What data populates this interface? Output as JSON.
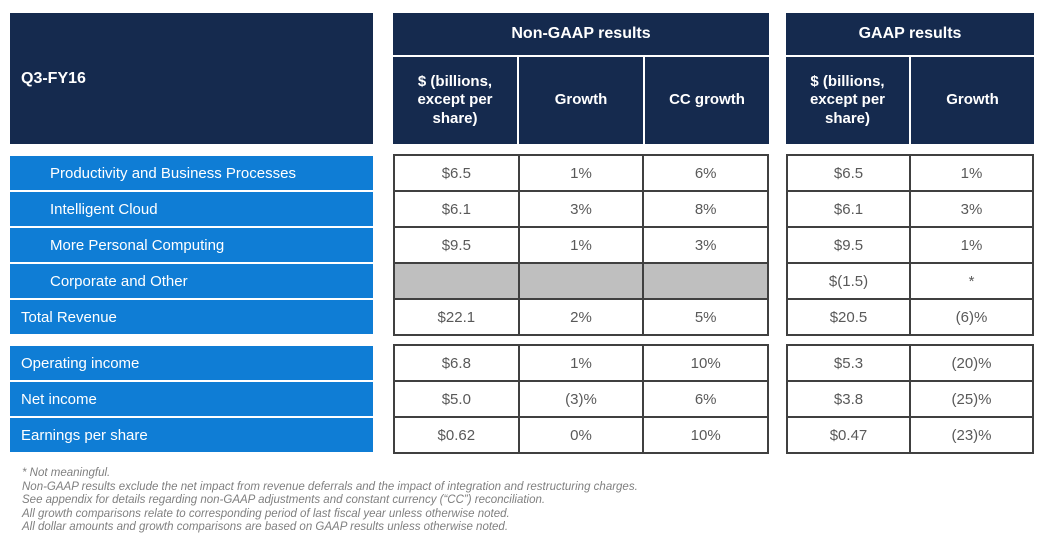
{
  "title_cell": "Q3-FY16",
  "non_gaap": {
    "title": "Non-GAAP results",
    "columns": [
      "$ (billions, except per share)",
      "Growth",
      "CC growth"
    ]
  },
  "gaap": {
    "title": "GAAP results",
    "columns": [
      "$ (billions, except per share)",
      "Growth"
    ]
  },
  "rows": {
    "revenue_labels": [
      "Productivity and Business Processes",
      "Intelligent Cloud",
      "More Personal Computing",
      "Corporate and Other",
      "Total Revenue"
    ],
    "income_labels": [
      "Operating income",
      "Net income",
      "Earnings per share"
    ]
  },
  "values": {
    "revenue_non_gaap": [
      [
        "$6.5",
        "1%",
        "6%"
      ],
      [
        "$6.1",
        "3%",
        "8%"
      ],
      [
        "$9.5",
        "1%",
        "3%"
      ],
      [
        "",
        "",
        ""
      ],
      [
        "$22.1",
        "2%",
        "5%"
      ]
    ],
    "revenue_gaap": [
      [
        "$6.5",
        "1%"
      ],
      [
        "$6.1",
        "3%"
      ],
      [
        "$9.5",
        "1%"
      ],
      [
        "$(1.5)",
        "*"
      ],
      [
        "$20.5",
        "(6)%"
      ]
    ],
    "income_non_gaap": [
      [
        "$6.8",
        "1%",
        "10%"
      ],
      [
        "$5.0",
        "(3)%",
        "6%"
      ],
      [
        "$0.62",
        "0%",
        "10%"
      ]
    ],
    "income_gaap": [
      [
        "$5.3",
        "(20)%"
      ],
      [
        "$3.8",
        "(25)%"
      ],
      [
        "$0.47",
        "(23)%"
      ]
    ]
  },
  "footnotes": [
    "* Not meaningful.",
    "Non-GAAP results exclude the net impact from revenue deferrals and the impact of integration and restructuring charges.",
    "See appendix for details regarding non-GAAP adjustments and constant currency (“CC”) reconciliation.",
    "All growth comparisons relate to corresponding period of last fiscal year unless otherwise noted.",
    "All dollar amounts and growth comparisons are based on GAAP results unless otherwise noted."
  ],
  "colors": {
    "header_navy": "#152a4e",
    "row_blue": "#0f7dd5",
    "muted_cell_gray": "#bfbfbf",
    "cell_border": "#404040",
    "value_text": "#595959",
    "footnote_text": "#7f7f7f"
  }
}
